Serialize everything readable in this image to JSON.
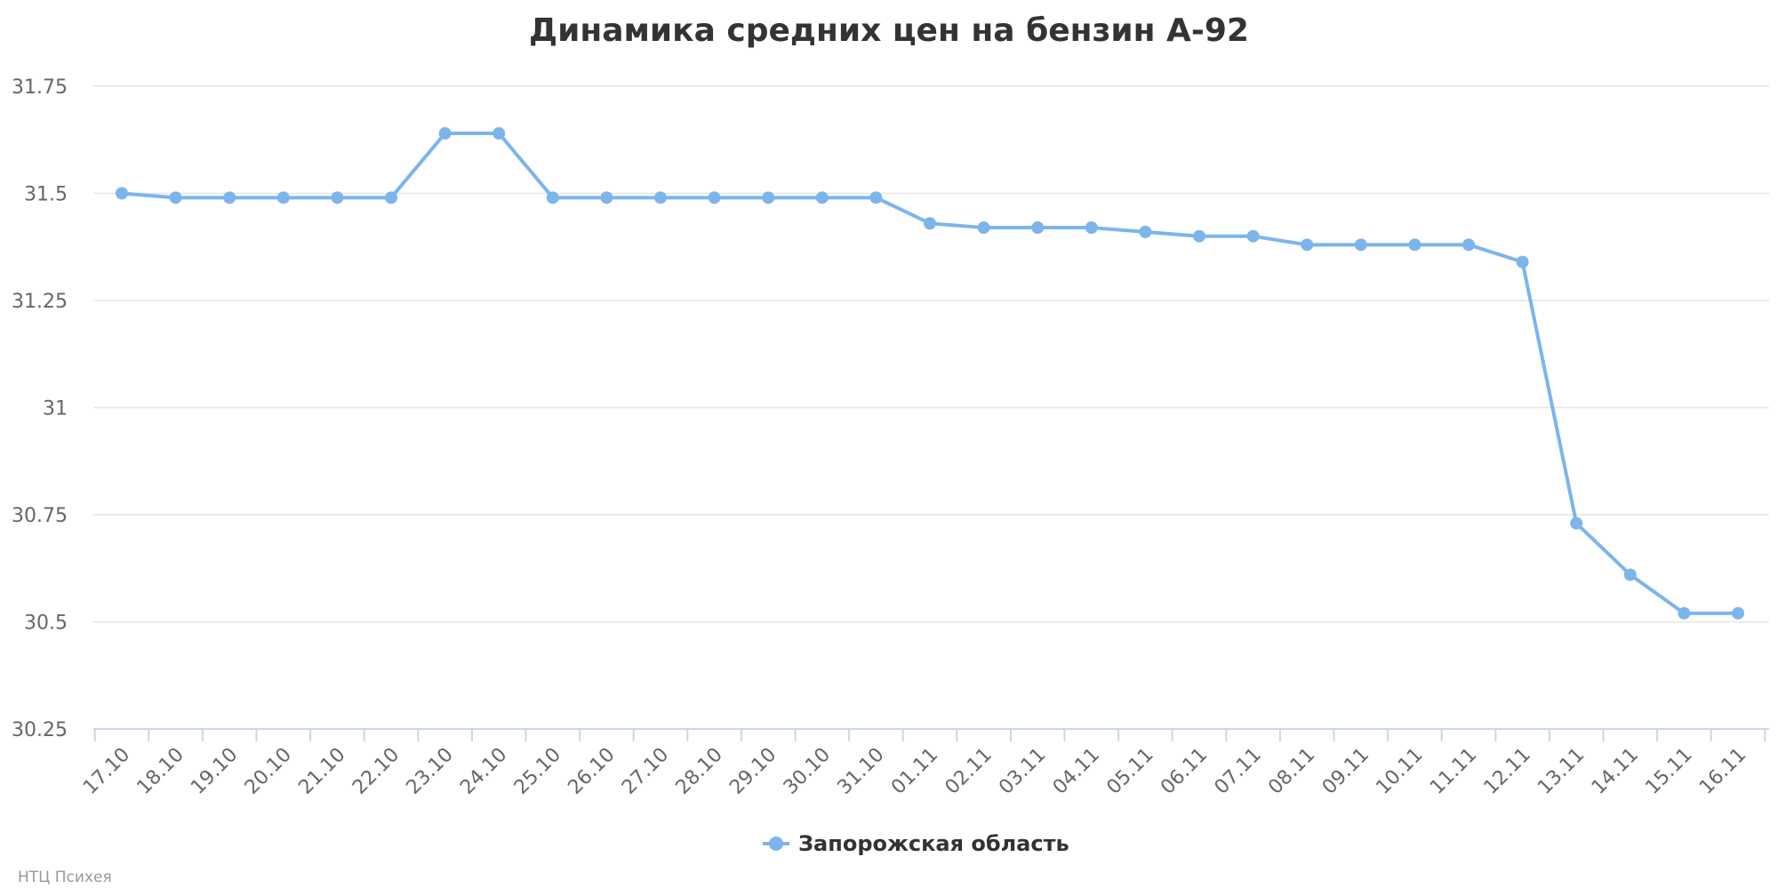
{
  "chart_data": {
    "type": "line",
    "title": "Динамика средних цен на бензин А-92",
    "xlabel": "",
    "ylabel": "",
    "categories": [
      "17.10",
      "18.10",
      "19.10",
      "20.10",
      "21.10",
      "22.10",
      "23.10",
      "24.10",
      "25.10",
      "26.10",
      "27.10",
      "28.10",
      "29.10",
      "30.10",
      "31.10",
      "01.11",
      "02.11",
      "03.11",
      "04.11",
      "05.11",
      "06.11",
      "07.11",
      "08.11",
      "09.11",
      "10.11",
      "11.11",
      "12.11",
      "13.11",
      "14.11",
      "15.11",
      "16.11"
    ],
    "series": [
      {
        "name": "Запорожская область",
        "color": "#7cb5ec",
        "values": [
          31.5,
          31.49,
          31.49,
          31.49,
          31.49,
          31.49,
          31.64,
          31.64,
          31.49,
          31.49,
          31.49,
          31.49,
          31.49,
          31.49,
          31.49,
          31.43,
          31.42,
          31.42,
          31.42,
          31.41,
          31.4,
          31.4,
          31.38,
          31.38,
          31.38,
          31.38,
          31.34,
          30.73,
          30.61,
          30.52,
          30.52
        ]
      }
    ],
    "ylim": [
      30.25,
      31.75
    ],
    "yticks": [
      30.25,
      30.5,
      30.75,
      31,
      31.25,
      31.5,
      31.75
    ],
    "ytick_labels": [
      "30.25",
      "30.5",
      "30.75",
      "31",
      "31.25",
      "31.5",
      "31.75"
    ],
    "grid": true,
    "legend": "bottom-center"
  },
  "credit": "НТЦ Психея"
}
